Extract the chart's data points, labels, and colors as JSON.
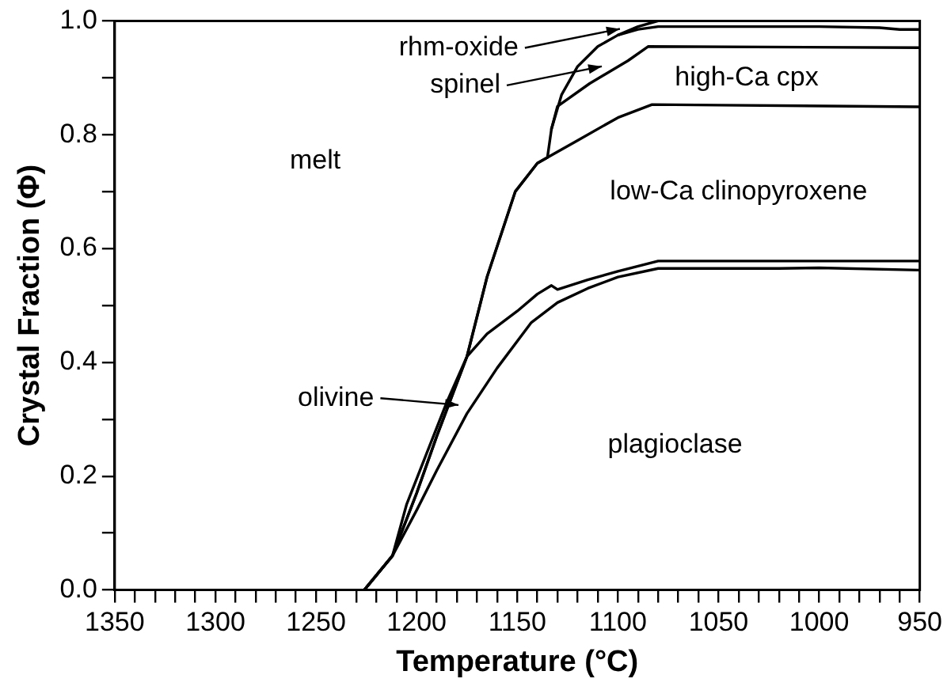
{
  "chart_data": {
    "type": "line",
    "xlabel": "Temperature (°C)",
    "ylabel": "Crystal Fraction (Φ)",
    "xlim": [
      1350,
      950
    ],
    "xticks": [
      1350,
      {
        "value": 1340,
        "label": null
      },
      {
        "value": 1330,
        "label": null
      },
      {
        "value": 1320,
        "label": null
      },
      {
        "value": 1310,
        "label": null
      },
      1300,
      {
        "value": 1290,
        "label": null
      },
      {
        "value": 1280,
        "label": null
      },
      {
        "value": 1270,
        "label": null
      },
      {
        "value": 1260,
        "label": null
      },
      1250,
      {
        "value": 1240,
        "label": null
      },
      {
        "value": 1230,
        "label": null
      },
      {
        "value": 1220,
        "label": null
      },
      {
        "value": 1210,
        "label": null
      },
      1200,
      {
        "value": 1190,
        "label": null
      },
      {
        "value": 1180,
        "label": null
      },
      {
        "value": 1170,
        "label": null
      },
      {
        "value": 1160,
        "label": null
      },
      1150,
      {
        "value": 1140,
        "label": null
      },
      {
        "value": 1130,
        "label": null
      },
      {
        "value": 1120,
        "label": null
      },
      {
        "value": 1110,
        "label": null
      },
      1100,
      {
        "value": 1090,
        "label": null
      },
      {
        "value": 1080,
        "label": null
      },
      {
        "value": 1070,
        "label": null
      },
      {
        "value": 1060,
        "label": null
      },
      1050,
      {
        "value": 1040,
        "label": null
      },
      {
        "value": 1030,
        "label": null
      },
      {
        "value": 1020,
        "label": null
      },
      {
        "value": 1010,
        "label": null
      },
      1000,
      {
        "value": 990,
        "label": null
      },
      {
        "value": 980,
        "label": null
      },
      {
        "value": 970,
        "label": null
      },
      {
        "value": 960,
        "label": null
      },
      950
    ],
    "ylim": [
      0,
      1
    ],
    "yticks": [
      {
        "value": 0,
        "label": "0.0"
      },
      {
        "value": 0.1,
        "label": null
      },
      {
        "value": 0.2,
        "label": "0.2"
      },
      {
        "value": 0.3,
        "label": null
      },
      {
        "value": 0.4,
        "label": "0.4"
      },
      {
        "value": 0.5,
        "label": null
      },
      {
        "value": 0.6,
        "label": "0.6"
      },
      {
        "value": 0.7,
        "label": null
      },
      {
        "value": 0.8,
        "label": "0.8"
      },
      {
        "value": 0.9,
        "label": null
      },
      {
        "value": 1,
        "label": "1.0"
      }
    ],
    "grid": false,
    "legend": false,
    "marker": "none",
    "line_style": "solid",
    "series": [
      {
        "color": "#000000",
        "x": [
          1226,
          1212,
          1200,
          1190,
          1175,
          1160,
          1143,
          1130,
          1115,
          1100,
          1080,
          1050,
          1020,
          1000,
          950
        ],
        "values": [
          0,
          0.06,
          0.14,
          0.21,
          0.31,
          0.39,
          0.47,
          0.505,
          0.53,
          0.55,
          0.565,
          0.565,
          0.565,
          0.566,
          0.562
        ]
      },
      {
        "color": "#000000",
        "x": [
          1226,
          1212,
          1205,
          1195,
          1185,
          1175,
          1165,
          1150,
          1140,
          1133,
          1130,
          1115,
          1100,
          1080,
          1020,
          950
        ],
        "values": [
          0,
          0.06,
          0.15,
          0.24,
          0.33,
          0.41,
          0.45,
          0.49,
          0.52,
          0.535,
          0.528,
          0.545,
          0.56,
          0.578,
          0.578,
          0.578
        ]
      },
      {
        "color": "#000000",
        "x": [
          1226,
          1212,
          1200,
          1190,
          1175,
          1165,
          1151,
          1140,
          1135,
          1120,
          1100,
          1083,
          1050,
          950
        ],
        "values": [
          0,
          0.06,
          0.17,
          0.27,
          0.41,
          0.55,
          0.7,
          0.75,
          0.76,
          0.79,
          0.83,
          0.853,
          0.852,
          0.849
        ]
      },
      {
        "color": "#000000",
        "x": [
          1133,
          1130,
          1114,
          1095,
          1085,
          950
        ],
        "values": [
          0.81,
          0.85,
          0.89,
          0.93,
          0.955,
          0.953
        ]
      },
      {
        "color": "#000000",
        "x": [
          1100,
          1090,
          1080,
          1000,
          970,
          960,
          950
        ],
        "values": [
          0.975,
          0.985,
          0.99,
          0.99,
          0.988,
          0.985,
          0.985
        ]
      },
      {
        "color": "#000000",
        "x": [
          1226,
          1212,
          1200,
          1190,
          1175,
          1165,
          1151,
          1140,
          1135,
          1133,
          1128,
          1120,
          1110,
          1100,
          1090,
          1080,
          950
        ],
        "values": [
          0,
          0.06,
          0.17,
          0.27,
          0.41,
          0.55,
          0.7,
          0.75,
          0.76,
          0.81,
          0.87,
          0.92,
          0.955,
          0.975,
          0.99,
          1,
          1
        ]
      }
    ],
    "annotations": [
      "melt",
      "low-Ca clinopyroxene",
      "high-Ca cpx",
      "plagioclase",
      "olivine",
      {
        "text": "rhm-oxide",
        "x": 1099,
        "y": 0.986
      },
      {
        "text": "spinel",
        "x": 1108,
        "y": 0.92
      }
    ]
  }
}
